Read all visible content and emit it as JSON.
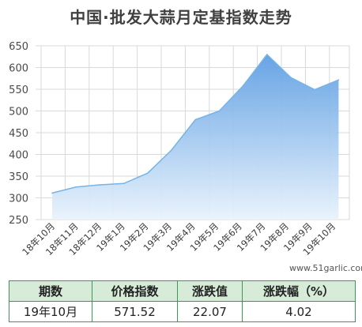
{
  "title": "中国·批发大蒜月定基指数走势",
  "watermark": "www.51garlic.com",
  "colors": {
    "line": "#76b4e6",
    "fill_top": "#6aa8e6",
    "fill_bottom": "#e8f3fc",
    "grid": "#d9d9d9",
    "table_border": "#3a9a55",
    "table_header_bg": "#d6ecd8"
  },
  "chart_data": {
    "type": "area",
    "title": "中国·批发大蒜月定基指数走势",
    "x": [
      "18年10月",
      "18年11月",
      "18年12月",
      "19年1月",
      "19年2月",
      "19年3月",
      "19年4月",
      "19年5月",
      "19年6月",
      "19年7月",
      "19年8月",
      "19年9月",
      "19年10月"
    ],
    "values": [
      311,
      325,
      330,
      333,
      357,
      410,
      480,
      500,
      558,
      630,
      577,
      549,
      571.52
    ],
    "y_ticks": [
      250,
      300,
      350,
      400,
      450,
      500,
      550,
      600,
      650
    ],
    "ylim": [
      250,
      650
    ],
    "grid": true,
    "legend": "none"
  },
  "table": {
    "headers": [
      "期数",
      "价格指数",
      "涨跌值",
      "涨跌幅（%）"
    ],
    "row": [
      "19年10月",
      "571.52",
      "22.07",
      "4.02"
    ]
  }
}
